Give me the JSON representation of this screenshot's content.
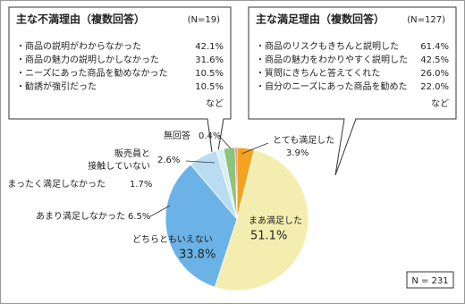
{
  "chart_data": {
    "type": "pie",
    "categories": [
      "とても満足した",
      "まあ満足した",
      "どちらともいえない",
      "あまり満足しなかった",
      "まったく満足しなかった",
      "販売員と\n接触していない",
      "無回答"
    ],
    "values": [
      3.9,
      51.1,
      33.8,
      6.5,
      1.7,
      2.6,
      0.4
    ],
    "value_labels": [
      "3.9%",
      "51.1%",
      "33.8%",
      "6.5%",
      "1.7%",
      "2.6%",
      "0.4%"
    ],
    "colors": [
      "#f4a21f",
      "#f3eeb0",
      "#6bb3e6",
      "#b9dcf3",
      "#d6eff4",
      "#8cc47a",
      "#e05a5a"
    ],
    "note": "N = 231",
    "callouts": [
      {
        "title": "主な不満理由（複数回答）",
        "n": "(N=19)",
        "items": [
          {
            "label": "・商品の説明がわからなかった",
            "value": "42.1%"
          },
          {
            "label": "・商品の魅力の説明しかしなかった",
            "value": "31.6%"
          },
          {
            "label": "・ニーズにあった商品を勧めなかった",
            "value": "10.5%"
          },
          {
            "label": "・勧誘が強引だった",
            "value": "10.5%"
          }
        ],
        "footnote": "など"
      },
      {
        "title": "主な満足理由（複数回答）",
        "n": "(N=127)",
        "items": [
          {
            "label": "・商品のリスクもきちんと説明した",
            "value": "61.4%"
          },
          {
            "label": "・商品の魅力をわかりやすく説明した",
            "value": "42.5%"
          },
          {
            "label": "・質問にきちんと答えてくれた",
            "value": "26.0%"
          },
          {
            "label": "・自分のニーズにあった商品を勧めた",
            "value": "22.0%"
          }
        ],
        "footnote": "など"
      }
    ]
  }
}
